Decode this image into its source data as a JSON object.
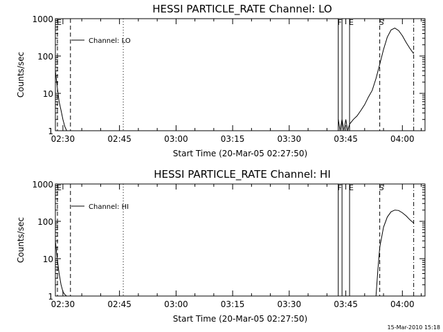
{
  "x_ticks": [
    "02:30",
    "02:45",
    "03:00",
    "03:15",
    "03:30",
    "03:45",
    "04:00"
  ],
  "y_ticks": [
    "1",
    "10",
    "100",
    "1000"
  ],
  "footer": {
    "timestamp": "15-Mar-2010 15:18"
  },
  "chart_data": [
    {
      "type": "line",
      "title": "HESSI PARTICLE_RATE Channel: LO",
      "xlabel": "Start Time (20-Mar-05 02:27:50)",
      "ylabel": "Counts/sec",
      "yscale": "log",
      "xlim": [
        "02:28",
        "04:06"
      ],
      "ylim": [
        1,
        1000
      ],
      "legend": {
        "label": "Channel: LO",
        "position": "top-left"
      },
      "series": [
        {
          "name": "Channel: LO",
          "x": [
            "02:28",
            "02:28:30",
            "02:29",
            "02:29:30",
            "02:30",
            "02:30:30",
            "02:31",
            "03:43",
            "03:43:30",
            "03:44",
            "03:44:30",
            "03:45",
            "03:45:30",
            "03:46",
            "03:47",
            "03:48",
            "03:49",
            "03:50",
            "03:51",
            "03:52",
            "03:53",
            "03:54",
            "03:55",
            "03:56",
            "03:57",
            "03:58",
            "03:59",
            "04:00",
            "04:01",
            "04:02",
            "04:03"
          ],
          "y": [
            40,
            15,
            6,
            3.5,
            2,
            1.3,
            1,
            2,
            1,
            2,
            1,
            2,
            1,
            1.5,
            2,
            2.5,
            3.5,
            5,
            8,
            12,
            25,
            60,
            150,
            320,
            500,
            560,
            480,
            350,
            230,
            160,
            115
          ]
        }
      ],
      "markers": [
        {
          "label": "E",
          "time": "02:28",
          "style": "dashed"
        },
        {
          "label": "",
          "time": "02:32",
          "style": "dashed"
        },
        {
          "label": "",
          "time": "02:46",
          "style": "dotted"
        },
        {
          "label": "F",
          "time": "03:43",
          "style": "solid"
        },
        {
          "label": "",
          "time": "03:44",
          "style": "solid"
        },
        {
          "label": "E",
          "time": "03:46",
          "style": "solid"
        },
        {
          "label": "S",
          "time": "03:54",
          "style": "dashed"
        },
        {
          "label": "",
          "time": "04:03",
          "style": "dash-dot"
        }
      ]
    },
    {
      "type": "line",
      "title": "HESSI PARTICLE_RATE Channel: HI",
      "xlabel": "Start Time (20-Mar-05 02:27:50)",
      "ylabel": "Counts/sec",
      "yscale": "log",
      "xlim": [
        "02:28",
        "04:06"
      ],
      "ylim": [
        1,
        1000
      ],
      "legend": {
        "label": "Channel: HI",
        "position": "top-left"
      },
      "series": [
        {
          "name": "Channel: HI",
          "x": [
            "02:28",
            "02:28:30",
            "02:29",
            "02:29:30",
            "02:30",
            "02:30:30",
            "02:31",
            "03:53",
            "03:53:30",
            "03:54",
            "03:55",
            "03:56",
            "03:57",
            "03:58",
            "03:59",
            "04:00",
            "04:01",
            "04:02",
            "04:03"
          ],
          "y": [
            30,
            10,
            4,
            2,
            1.3,
            1.1,
            1,
            1,
            5,
            20,
            70,
            130,
            180,
            200,
            195,
            170,
            140,
            110,
            90
          ]
        }
      ],
      "markers": [
        {
          "label": "E",
          "time": "02:28",
          "style": "dashed"
        },
        {
          "label": "",
          "time": "02:32",
          "style": "dashed"
        },
        {
          "label": "",
          "time": "02:46",
          "style": "dotted"
        },
        {
          "label": "F",
          "time": "03:43",
          "style": "solid"
        },
        {
          "label": "",
          "time": "03:44",
          "style": "solid"
        },
        {
          "label": "E",
          "time": "03:46",
          "style": "solid"
        },
        {
          "label": "S",
          "time": "03:54",
          "style": "dashed"
        },
        {
          "label": "",
          "time": "04:03",
          "style": "dash-dot"
        }
      ]
    }
  ]
}
